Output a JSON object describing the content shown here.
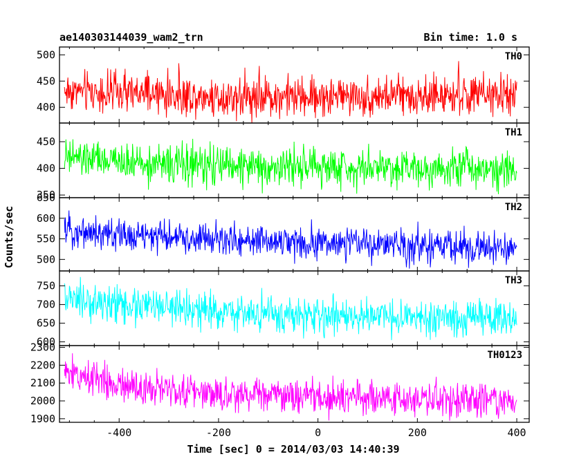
{
  "chart_data": {
    "type": "line",
    "title": "ae140303144039_wam2_trn",
    "subtitle": "Bin time: 1.0 s",
    "xlabel": "Time [sec] 0 = 2014/03/03 14:40:39",
    "ylabel": "Counts/sec",
    "xlim": [
      -520,
      425
    ],
    "xticks": [
      -400,
      -200,
      0,
      200,
      400
    ],
    "x_range": [
      -510,
      400
    ],
    "bin_time": 1.0,
    "panels": [
      {
        "name": "TH0",
        "color": "#ff0000",
        "ylim": [
          370,
          515
        ],
        "yticks": [
          400,
          450,
          500
        ],
        "trend": [
          [
            -510,
            432
          ],
          [
            -400,
            426
          ],
          [
            -200,
            421
          ],
          [
            0,
            420
          ],
          [
            200,
            422
          ],
          [
            400,
            422
          ]
        ],
        "noise_amplitude": 24,
        "range": [
          370,
          515
        ]
      },
      {
        "name": "TH1",
        "color": "#00ff00",
        "ylim": [
          345,
          485
        ],
        "yticks": [
          350,
          400,
          450
        ],
        "trend": [
          [
            -510,
            420
          ],
          [
            -400,
            412
          ],
          [
            -200,
            404
          ],
          [
            0,
            402
          ],
          [
            200,
            402
          ],
          [
            400,
            401
          ]
        ],
        "noise_amplitude": 22,
        "range": [
          350,
          480
        ]
      },
      {
        "name": "TH2",
        "color": "#0000ff",
        "ylim": [
          472,
          650
        ],
        "yticks": [
          500,
          550,
          600,
          650
        ],
        "trend": [
          [
            -510,
            572
          ],
          [
            -400,
            560
          ],
          [
            -200,
            548
          ],
          [
            0,
            540
          ],
          [
            200,
            532
          ],
          [
            400,
            524
          ]
        ],
        "noise_amplitude": 24,
        "range": [
          472,
          650
        ]
      },
      {
        "name": "TH3",
        "color": "#00ffff",
        "ylim": [
          590,
          790
        ],
        "yticks": [
          600,
          650,
          700,
          750
        ],
        "trend": [
          [
            -510,
            712
          ],
          [
            -400,
            700
          ],
          [
            -200,
            680
          ],
          [
            0,
            668
          ],
          [
            200,
            662
          ],
          [
            400,
            660
          ]
        ],
        "noise_amplitude": 30,
        "range": [
          595,
          790
        ]
      },
      {
        "name": "TH0123",
        "color": "#ff00ff",
        "ylim": [
          1880,
          2310
        ],
        "yticks": [
          1900,
          2000,
          2100,
          2200,
          2300
        ],
        "trend": [
          [
            -510,
            2160
          ],
          [
            -400,
            2100
          ],
          [
            -300,
            2065
          ],
          [
            -200,
            2040
          ],
          [
            0,
            2020
          ],
          [
            200,
            2008
          ],
          [
            400,
            2000
          ]
        ],
        "noise_amplitude": 60,
        "range": [
          1880,
          2305
        ]
      }
    ],
    "grid": false,
    "legend": "none"
  }
}
